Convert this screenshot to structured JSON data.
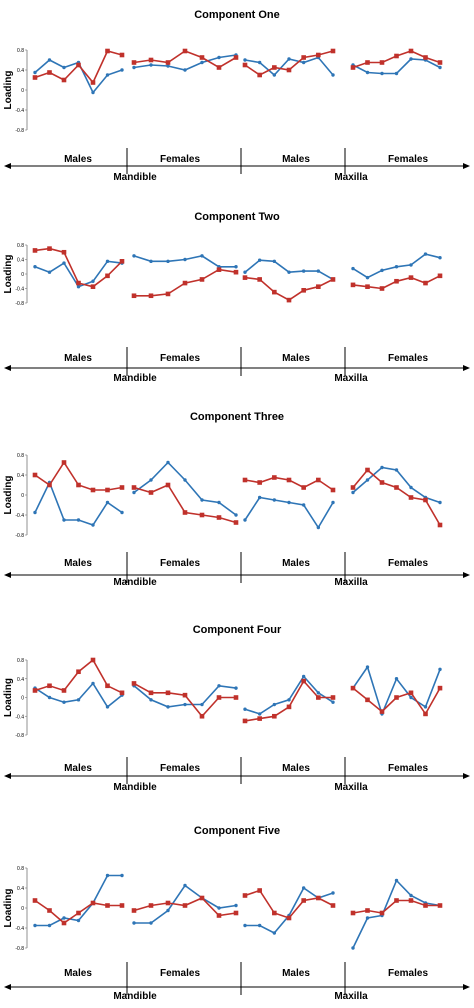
{
  "y_axis_label": "Loading",
  "y_ticks": [
    "0.8",
    "0.4",
    "0",
    "-0.4",
    "-0.8"
  ],
  "group_labels": {
    "males": "Males",
    "females": "Females",
    "mandible": "Mandible",
    "maxilla": "Maxilla"
  },
  "colors": {
    "series_a": "#2e75b6",
    "series_b": "#c0312b"
  },
  "chart_data": [
    {
      "type": "line",
      "title": "Component One",
      "ylabel": "Loading",
      "ylim": [
        -0.8,
        0.8
      ],
      "grid": false,
      "panels": [
        {
          "group": "Males",
          "region": "Mandible",
          "series": [
            {
              "values": [
                0.35,
                0.6,
                0.45,
                0.55,
                -0.05,
                0.3,
                0.4
              ]
            },
            {
              "values": [
                0.25,
                0.35,
                0.2,
                0.5,
                0.15,
                0.78,
                0.7
              ]
            }
          ]
        },
        {
          "group": "Females",
          "region": "Mandible",
          "series": [
            {
              "values": [
                0.45,
                0.5,
                0.48,
                0.4,
                0.55,
                0.65,
                0.7
              ]
            },
            {
              "values": [
                0.55,
                0.6,
                0.55,
                0.78,
                0.65,
                0.45,
                0.65
              ]
            }
          ]
        },
        {
          "group": "Males",
          "region": "Maxilla",
          "series": [
            {
              "values": [
                0.6,
                0.55,
                0.3,
                0.62,
                0.55,
                0.65,
                0.3
              ]
            },
            {
              "values": [
                0.5,
                0.3,
                0.45,
                0.4,
                0.65,
                0.7,
                0.78
              ]
            }
          ]
        },
        {
          "group": "Females",
          "region": "Maxilla",
          "series": [
            {
              "values": [
                0.5,
                0.35,
                0.33,
                0.33,
                0.62,
                0.6,
                0.45
              ]
            },
            {
              "values": [
                0.45,
                0.55,
                0.55,
                0.68,
                0.78,
                0.65,
                0.55
              ]
            }
          ]
        }
      ]
    },
    {
      "type": "line",
      "title": "Component Two",
      "ylabel": "Loading",
      "ylim": [
        -0.8,
        0.8
      ],
      "grid": false,
      "panels": [
        {
          "group": "Males",
          "region": "Mandible",
          "series": [
            {
              "values": [
                0.2,
                0.05,
                0.3,
                -0.35,
                -0.2,
                0.35,
                0.3
              ]
            },
            {
              "values": [
                0.65,
                0.7,
                0.6,
                -0.25,
                -0.35,
                -0.05,
                0.35
              ]
            }
          ]
        },
        {
          "group": "Females",
          "region": "Mandible",
          "series": [
            {
              "values": [
                0.5,
                0.35,
                0.35,
                0.4,
                0.5,
                0.2,
                0.2
              ]
            },
            {
              "values": [
                -0.6,
                -0.6,
                -0.55,
                -0.25,
                -0.15,
                0.12,
                0.05
              ]
            }
          ]
        },
        {
          "group": "Males",
          "region": "Maxilla",
          "series": [
            {
              "values": [
                0.05,
                0.38,
                0.35,
                0.05,
                0.08,
                0.08,
                -0.15
              ]
            },
            {
              "values": [
                -0.1,
                -0.15,
                -0.5,
                -0.72,
                -0.45,
                -0.35,
                -0.15
              ]
            }
          ]
        },
        {
          "group": "Females",
          "region": "Maxilla",
          "series": [
            {
              "values": [
                0.15,
                -0.1,
                0.1,
                0.2,
                0.25,
                0.55,
                0.45
              ]
            },
            {
              "values": [
                -0.3,
                -0.35,
                -0.4,
                -0.2,
                -0.1,
                -0.25,
                -0.05
              ]
            }
          ]
        }
      ]
    },
    {
      "type": "line",
      "title": "Component Three",
      "ylabel": "Loading",
      "ylim": [
        -0.8,
        0.8
      ],
      "grid": false,
      "panels": [
        {
          "group": "Males",
          "region": "Mandible",
          "series": [
            {
              "values": [
                -0.35,
                0.25,
                -0.5,
                -0.5,
                -0.6,
                -0.15,
                -0.35
              ]
            },
            {
              "values": [
                0.4,
                0.2,
                0.65,
                0.2,
                0.1,
                0.1,
                0.15
              ]
            }
          ]
        },
        {
          "group": "Females",
          "region": "Mandible",
          "series": [
            {
              "values": [
                0.05,
                0.3,
                0.65,
                0.3,
                -0.1,
                -0.15,
                -0.4
              ]
            },
            {
              "values": [
                0.15,
                0.05,
                0.2,
                -0.35,
                -0.4,
                -0.45,
                -0.55
              ]
            }
          ]
        },
        {
          "group": "Males",
          "region": "Maxilla",
          "series": [
            {
              "values": [
                -0.5,
                -0.05,
                -0.1,
                -0.15,
                -0.2,
                -0.65,
                -0.15
              ]
            },
            {
              "values": [
                0.3,
                0.25,
                0.35,
                0.3,
                0.15,
                0.3,
                0.1
              ]
            }
          ]
        },
        {
          "group": "Females",
          "region": "Maxilla",
          "series": [
            {
              "values": [
                0.05,
                0.3,
                0.55,
                0.5,
                0.15,
                -0.05,
                -0.15
              ]
            },
            {
              "values": [
                0.15,
                0.5,
                0.25,
                0.15,
                -0.05,
                -0.1,
                -0.6
              ]
            }
          ]
        }
      ]
    },
    {
      "type": "line",
      "title": "Component Four",
      "ylabel": "Loading",
      "ylim": [
        -0.8,
        0.8
      ],
      "grid": false,
      "panels": [
        {
          "group": "Males",
          "region": "Mandible",
          "series": [
            {
              "values": [
                0.2,
                0.0,
                -0.1,
                -0.05,
                0.3,
                -0.2,
                0.05
              ]
            },
            {
              "values": [
                0.15,
                0.25,
                0.15,
                0.55,
                0.8,
                0.25,
                0.1
              ]
            }
          ]
        },
        {
          "group": "Females",
          "region": "Mandible",
          "series": [
            {
              "values": [
                0.25,
                -0.05,
                -0.2,
                -0.15,
                -0.15,
                0.25,
                0.2
              ]
            },
            {
              "values": [
                0.3,
                0.1,
                0.1,
                0.05,
                -0.4,
                0.0,
                0.0
              ]
            }
          ]
        },
        {
          "group": "Males",
          "region": "Maxilla",
          "series": [
            {
              "values": [
                -0.25,
                -0.35,
                -0.15,
                -0.05,
                0.45,
                0.1,
                -0.1
              ]
            },
            {
              "values": [
                -0.5,
                -0.45,
                -0.4,
                -0.2,
                0.35,
                0.0,
                0.0
              ]
            }
          ]
        },
        {
          "group": "Females",
          "region": "Maxilla",
          "series": [
            {
              "values": [
                0.2,
                0.65,
                -0.35,
                0.4,
                0.0,
                -0.2,
                0.6
              ]
            },
            {
              "values": [
                0.2,
                -0.05,
                -0.3,
                0.0,
                0.1,
                -0.35,
                0.2
              ]
            }
          ]
        }
      ]
    },
    {
      "type": "line",
      "title": "Component Five",
      "ylabel": "Loading",
      "ylim": [
        -0.8,
        0.8
      ],
      "grid": false,
      "panels": [
        {
          "group": "Males",
          "region": "Mandible",
          "series": [
            {
              "values": [
                -0.35,
                -0.35,
                -0.2,
                -0.25,
                0.1,
                0.65,
                0.65
              ]
            },
            {
              "values": [
                0.15,
                -0.05,
                -0.3,
                -0.1,
                0.1,
                0.05,
                0.05
              ]
            }
          ]
        },
        {
          "group": "Females",
          "region": "Mandible",
          "series": [
            {
              "values": [
                -0.3,
                -0.3,
                -0.05,
                0.45,
                0.2,
                0.0,
                0.05
              ]
            },
            {
              "values": [
                -0.05,
                0.05,
                0.1,
                0.05,
                0.2,
                -0.15,
                -0.1
              ]
            }
          ]
        },
        {
          "group": "Males",
          "region": "Maxilla",
          "series": [
            {
              "values": [
                -0.35,
                -0.35,
                -0.5,
                -0.15,
                0.4,
                0.2,
                0.3
              ]
            },
            {
              "values": [
                0.25,
                0.35,
                -0.1,
                -0.2,
                0.15,
                0.2,
                0.05
              ]
            }
          ]
        },
        {
          "group": "Females",
          "region": "Maxilla",
          "series": [
            {
              "values": [
                -0.8,
                -0.2,
                -0.15,
                0.55,
                0.25,
                0.1,
                0.05
              ]
            },
            {
              "values": [
                -0.1,
                -0.05,
                -0.1,
                0.15,
                0.15,
                0.05,
                0.05
              ]
            }
          ]
        }
      ]
    }
  ]
}
